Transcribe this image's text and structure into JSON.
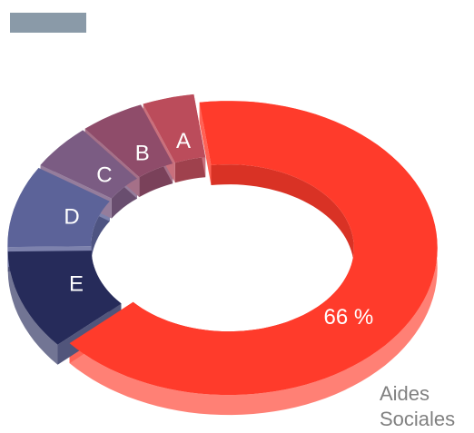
{
  "chart_data": {
    "type": "donut3d",
    "categories": [
      "Aides Sociales",
      "E",
      "D",
      "C",
      "B",
      "A"
    ],
    "values": [
      66,
      11,
      9,
      5,
      5,
      4
    ],
    "value_labels": [
      "66 %",
      null,
      null,
      null,
      null,
      null
    ],
    "colors": [
      "#ff3b2b",
      "#262b5a",
      "#5c6399",
      "#7b5c83",
      "#8f4c6a",
      "#bb4c5b"
    ]
  }
}
